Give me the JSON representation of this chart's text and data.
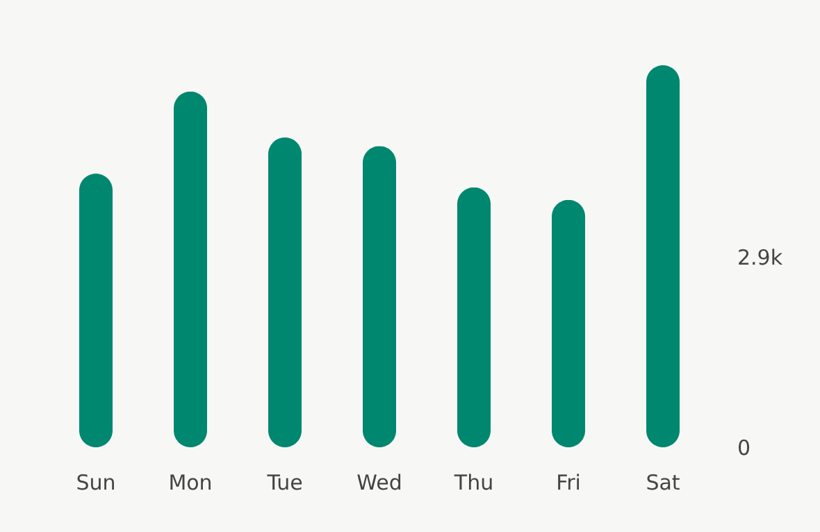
{
  "chart_data": {
    "type": "bar",
    "categories": [
      "Sun",
      "Mon",
      "Tue",
      "Wed",
      "Thu",
      "Fri",
      "Sat"
    ],
    "values": [
      4170,
      5420,
      4720,
      4590,
      3960,
      3770,
      5820
    ],
    "color": "#00876f",
    "ylim": [
      0,
      5820
    ],
    "yticks": [
      0,
      {
        "value": 2900,
        "label": "2.9k"
      }
    ]
  }
}
